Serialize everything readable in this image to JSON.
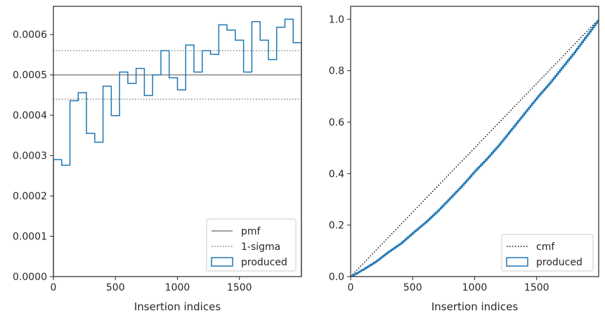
{
  "chart_data": [
    {
      "type": "histogram-step",
      "xlabel": "Insertion indices",
      "ylabel": "",
      "xlim": [
        0,
        2000
      ],
      "ylim": [
        0,
        0.00067
      ],
      "xticks": [
        0,
        500,
        1000,
        1500
      ],
      "yticks": [
        0,
        0.0001,
        0.0002,
        0.0003,
        0.0004,
        0.0005,
        0.0006
      ],
      "ytick_labels": [
        "0.0000",
        "0.0001",
        "0.0002",
        "0.0003",
        "0.0004",
        "0.0005",
        "0.0006"
      ],
      "bin_width": 66.67,
      "histogram": {
        "name": "produced",
        "color": "#1f77b4",
        "values": [
          0.00029,
          0.000276,
          0.000436,
          0.000456,
          0.000355,
          0.000333,
          0.000472,
          0.000399,
          0.000507,
          0.000479,
          0.000516,
          0.000449,
          0.0005,
          0.00056,
          0.000493,
          0.000463,
          0.000574,
          0.000507,
          0.00056,
          0.000551,
          0.000624,
          0.000611,
          0.000586,
          0.000507,
          0.000632,
          0.000586,
          0.000538,
          0.000618,
          0.000638,
          0.00058
        ]
      },
      "lines": [
        {
          "name": "pmf",
          "y": 0.0005,
          "style": "solid",
          "color": "#808080"
        },
        {
          "name": "1-sigma",
          "y": [
            0.00044,
            0.00056
          ],
          "style": "dotted",
          "color": "#808080"
        }
      ],
      "legend": {
        "placement": "lower-right",
        "entries": [
          "pmf",
          "1-sigma",
          "produced"
        ]
      }
    },
    {
      "type": "line",
      "xlabel": "Insertion indices",
      "ylabel": "",
      "xlim": [
        0,
        2000
      ],
      "ylim": [
        0,
        1.05
      ],
      "xticks": [
        0,
        500,
        1000,
        1500
      ],
      "yticks": [
        0.0,
        0.2,
        0.4,
        0.6,
        0.8,
        1.0
      ],
      "ytick_labels": [
        "0.0",
        "0.2",
        "0.4",
        "0.6",
        "0.8",
        "1.0"
      ],
      "series": [
        {
          "name": "cmf",
          "style": "dotted",
          "color": "#000000",
          "x": [
            0,
            2000
          ],
          "y": [
            0,
            1.0
          ]
        },
        {
          "name": "produced",
          "style": "step",
          "color": "#1f77b4",
          "x": [
            0,
            100,
            200,
            300,
            400,
            500,
            600,
            700,
            800,
            900,
            1000,
            1100,
            1200,
            1300,
            1400,
            1500,
            1600,
            1700,
            1800,
            1900,
            2000
          ],
          "y": [
            0,
            0.028,
            0.058,
            0.095,
            0.128,
            0.17,
            0.21,
            0.255,
            0.305,
            0.355,
            0.41,
            0.46,
            0.515,
            0.575,
            0.635,
            0.695,
            0.75,
            0.81,
            0.87,
            0.935,
            1.0
          ]
        }
      ],
      "legend": {
        "placement": "lower-right",
        "entries": [
          "cmf",
          "produced"
        ]
      }
    }
  ]
}
